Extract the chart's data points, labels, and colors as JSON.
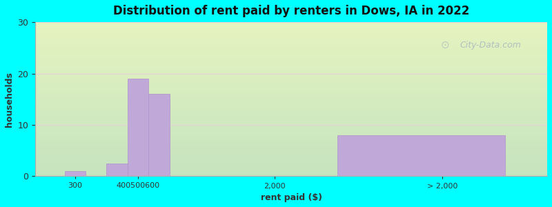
{
  "title": "Distribution of rent paid by renters in Dows, IA in 2022",
  "xlabel": "rent paid ($)",
  "ylabel": "households",
  "background_color": "#00FFFF",
  "bar_color": "#c0a8d8",
  "bar_edge_color": "#b090cc",
  "ylim": [
    0,
    30
  ],
  "yticks": [
    0,
    10,
    20,
    30
  ],
  "values": [
    1,
    2.5,
    19,
    16,
    8
  ],
  "watermark": "City-Data.com"
}
